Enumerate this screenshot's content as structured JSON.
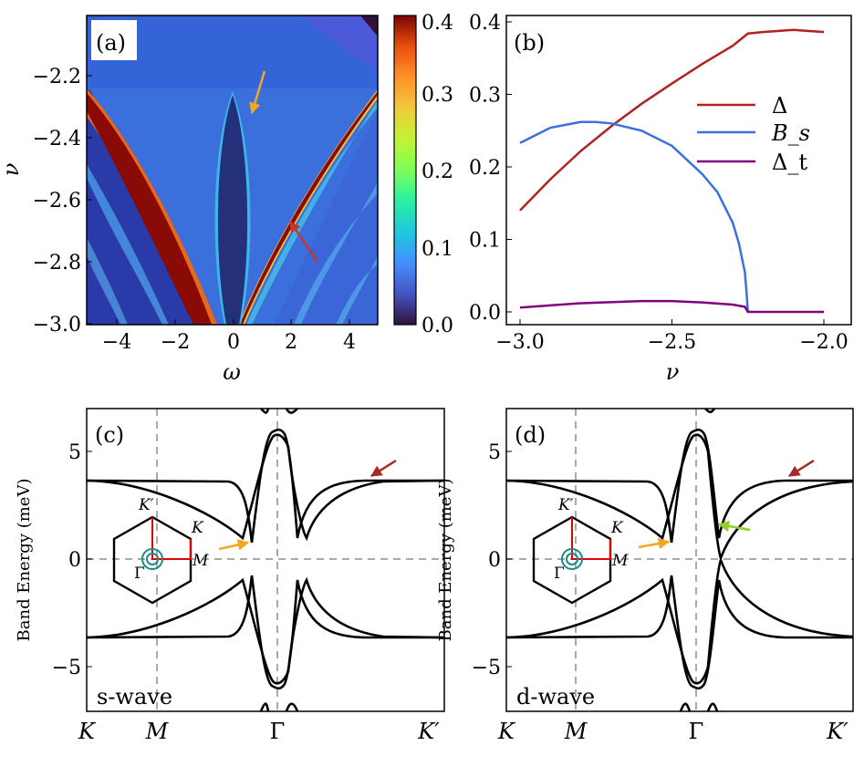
{
  "chart_data": [
    {
      "panel": "(a)",
      "type": "heatmap",
      "xlabel": "ω",
      "ylabel": "ν",
      "xlim": [
        -5,
        5
      ],
      "ylim": [
        -3.0,
        -2.0
      ],
      "x_ticks": [
        "−4",
        "−2",
        "0",
        "2",
        "4"
      ],
      "y_ticks": [
        "−2.2",
        "−2.4",
        "−2.6",
        "−2.8",
        "−3.0"
      ],
      "colorbar": {
        "range": [
          0.0,
          0.4
        ],
        "ticks": [
          "0.4",
          "0.3",
          "0.2",
          "0.1",
          "0.0"
        ],
        "colormap": "turbo"
      },
      "features": [
        {
          "name": "central dark lobe",
          "apex_nu": -2.25,
          "max_halfwidth_omega": 0.8
        },
        {
          "name": "left bright branch",
          "from": [
            -5,
            -2.25
          ],
          "to": [
            -0.3,
            -3.0
          ]
        },
        {
          "name": "right bright branch",
          "from": [
            5,
            -2.26
          ],
          "to": [
            0.3,
            -3.0
          ]
        }
      ],
      "annotations": [
        {
          "color": "#f5a623",
          "points_to_omega": 0.7,
          "points_to_nu": -2.32
        },
        {
          "color": "#c0392b",
          "points_to_omega": 2.0,
          "points_to_nu": -2.65
        }
      ]
    },
    {
      "panel": "(b)",
      "type": "line",
      "xlabel": "ν",
      "ylabel": "",
      "xlim": [
        -3.0,
        -2.0
      ],
      "ylim": [
        0.0,
        0.4
      ],
      "x_ticks": [
        "−3.0",
        "−2.5",
        "−2.0"
      ],
      "y_ticks": [
        "0.4",
        "0.3",
        "0.2",
        "0.1",
        "0.0"
      ],
      "legend": "upper-right",
      "series": [
        {
          "name": "Δ",
          "color": "#b22222",
          "x": [
            -3.0,
            -2.9,
            -2.8,
            -2.7,
            -2.6,
            -2.5,
            -2.4,
            -2.3,
            -2.25,
            -2.2,
            -2.1,
            -2.0
          ],
          "y": [
            0.14,
            0.183,
            0.222,
            0.256,
            0.287,
            0.315,
            0.342,
            0.367,
            0.384,
            0.386,
            0.389,
            0.386
          ]
        },
        {
          "name": "B_s",
          "color": "#3a70e0",
          "x": [
            -3.0,
            -2.9,
            -2.8,
            -2.75,
            -2.7,
            -2.6,
            -2.5,
            -2.4,
            -2.35,
            -2.3,
            -2.28,
            -2.26,
            -2.255,
            -2.25
          ],
          "y": [
            0.233,
            0.254,
            0.262,
            0.262,
            0.26,
            0.25,
            0.229,
            0.19,
            0.165,
            0.123,
            0.095,
            0.055,
            0.03,
            0.0
          ]
        },
        {
          "name": "Δ_t",
          "color": "#800080",
          "x": [
            -3.0,
            -2.8,
            -2.6,
            -2.5,
            -2.4,
            -2.3,
            -2.26,
            -2.25,
            -2.2,
            -2.0
          ],
          "y": [
            0.006,
            0.012,
            0.015,
            0.015,
            0.013,
            0.01,
            0.007,
            0.0,
            0.0,
            0.0
          ]
        }
      ]
    },
    {
      "panel": "(c)",
      "type": "line",
      "subtitle": "s-wave",
      "ylabel": "Band Energy (meV)",
      "ylim": [
        -7,
        7
      ],
      "x_ticks": [
        "K",
        "M",
        "Γ",
        "K′"
      ],
      "y_ticks": [
        "5",
        "0",
        "−5"
      ],
      "inset_labels": [
        "K′",
        "K",
        "M",
        "Γ"
      ]
    },
    {
      "panel": "(d)",
      "type": "line",
      "subtitle": "d-wave",
      "ylabel": "Band Energy (meV)",
      "ylim": [
        -7,
        7
      ],
      "x_ticks": [
        "K",
        "M",
        "Γ",
        "K′"
      ],
      "y_ticks": [
        "5",
        "0",
        "−5"
      ],
      "inset_labels": [
        "K′",
        "K",
        "M",
        "Γ"
      ]
    }
  ],
  "accent_colors": {
    "orange": "#f5a623",
    "red": "#a52a2a",
    "green": "#8ccf2a",
    "teal": "#1b8a8a"
  }
}
